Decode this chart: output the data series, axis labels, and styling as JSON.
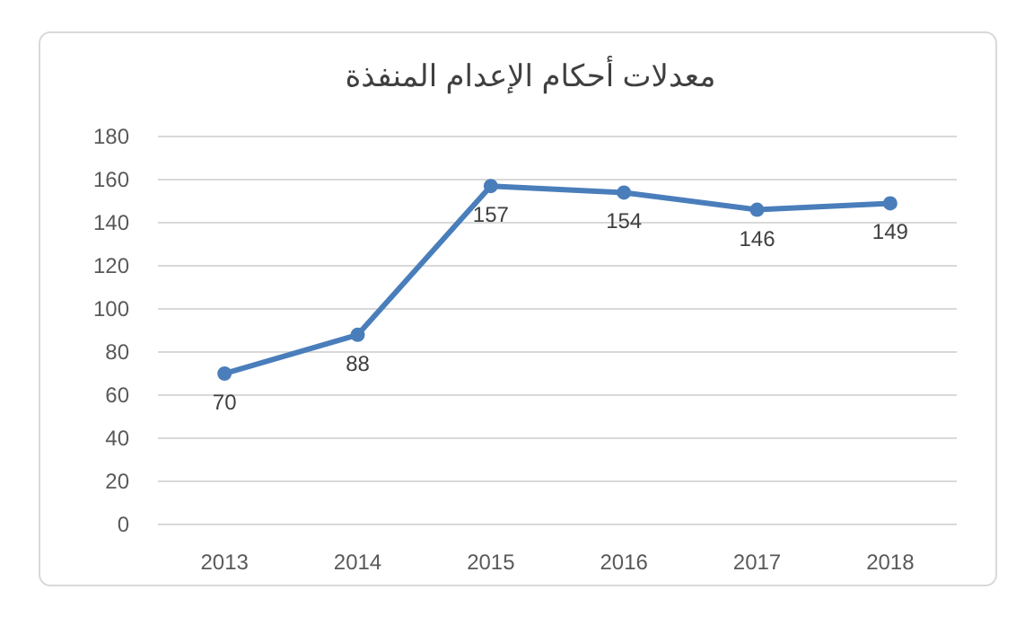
{
  "chart_data": {
    "type": "line",
    "title": "معدلات أحكام الإعدام المنفذة",
    "categories": [
      "2013",
      "2014",
      "2015",
      "2016",
      "2017",
      "2018"
    ],
    "series": [
      {
        "color": "#4a7ebb",
        "values": [
          70,
          88,
          157,
          154,
          146,
          149
        ]
      }
    ],
    "ylim": [
      0,
      180
    ],
    "yticks": [
      0,
      20,
      40,
      60,
      80,
      100,
      120,
      140,
      160,
      180
    ],
    "grid": "y",
    "marker": "circle",
    "line_style": "solid",
    "data_labels": true
  }
}
